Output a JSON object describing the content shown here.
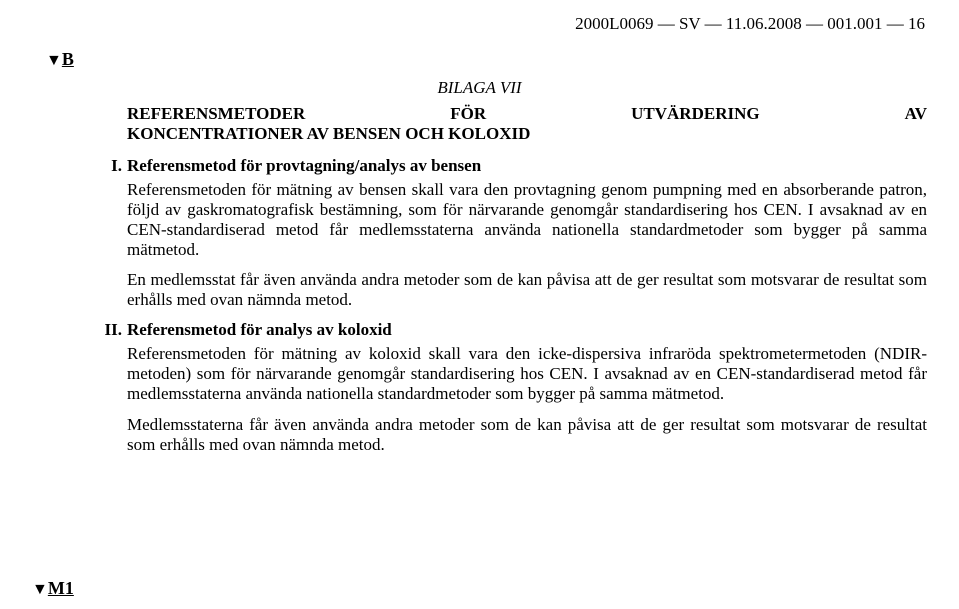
{
  "header": "2000L0069 — SV — 11.06.2008 — 001.001 — 16",
  "markerB": "B",
  "markerM1": "M1",
  "bilaga": "BILAGA VII",
  "title": {
    "left": "REFERENSMETODER",
    "mid": "FÖR",
    "right": "UTVÄRDERING",
    "end": "AV",
    "line2": "KONCENTRATIONER AV BENSEN OCH KOLOXID"
  },
  "sections": [
    {
      "num": "I.",
      "heading": "Referensmetod för provtagning/analys av bensen",
      "paras": [
        "Referensmetoden för mätning av bensen skall vara den provtagning genom pumpning med en absorberande patron, följd av gaskromatografisk bestämning, som för närvarande genomgår standardisering hos CEN. I avsaknad av en CEN-standardiserad metod får medlemsstaterna använda nationella standardmetoder som bygger på samma mätmetod.",
        "En medlemsstat får även använda andra metoder som de kan påvisa att de ger resultat som motsvarar de resultat som erhålls med ovan nämnda metod."
      ]
    },
    {
      "num": "II.",
      "heading": "Referensmetod för analys av koloxid",
      "paras": [
        "Referensmetoden för mätning av koloxid skall vara den icke-dispersiva infraröda spektrometermetoden (NDIR-metoden) som för närvarande genomgår standardisering hos CEN. I avsaknad av en CEN-standardiserad metod får medlemsstaterna använda nationella standardmetoder som bygger på samma mätmetod.",
        "Medlemsstaterna får även använda andra metoder som de kan påvisa att de ger resultat som motsvarar de resultat som erhålls med ovan nämnda metod."
      ]
    }
  ],
  "colors": {
    "text": "#000000",
    "background": "#ffffff"
  }
}
